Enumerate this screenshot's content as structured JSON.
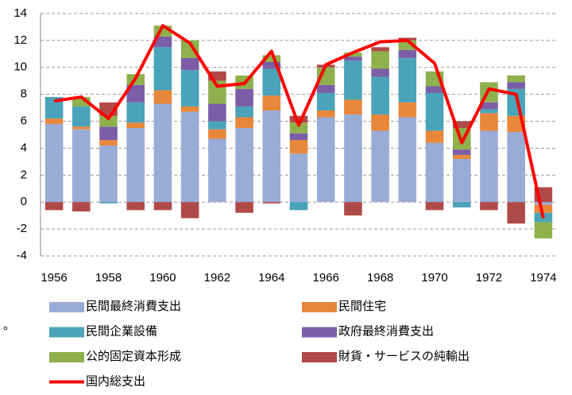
{
  "chart_data": {
    "type": "bar",
    "stacked": true,
    "categories": [
      "1956",
      null,
      "1958",
      null,
      "1960",
      null,
      "1962",
      null,
      "1964",
      null,
      "1966",
      null,
      "1968",
      null,
      "1970",
      null,
      "1972",
      null,
      "1974"
    ],
    "ylim": [
      -4,
      14
    ],
    "yticks": [
      -4,
      -2,
      0,
      2,
      4,
      6,
      8,
      10,
      12,
      14
    ],
    "grid": true,
    "annotation": "。",
    "series": [
      {
        "name": "民間最終消費支出",
        "color": "#98acd6",
        "values": [
          5.8,
          5.4,
          4.2,
          5.5,
          7.3,
          6.7,
          4.7,
          5.5,
          6.8,
          3.6,
          6.3,
          6.5,
          5.3,
          6.3,
          4.4,
          3.2,
          5.3,
          5.2,
          -0.2
        ]
      },
      {
        "name": "民間住宅",
        "color": "#e8873a",
        "values": [
          0.4,
          0.2,
          0.4,
          0.4,
          1.0,
          0.4,
          0.7,
          0.8,
          1.1,
          1.0,
          0.5,
          1.1,
          1.2,
          1.1,
          0.9,
          0.3,
          1.3,
          1.2,
          -0.6
        ]
      },
      {
        "name": "民間企業設備",
        "color": "#4aa3b8",
        "values": [
          1.6,
          1.5,
          -0.1,
          1.5,
          3.2,
          2.7,
          0.6,
          0.8,
          2.0,
          -0.6,
          1.3,
          2.9,
          2.8,
          3.3,
          2.8,
          -0.4,
          0.3,
          2.0,
          -0.7
        ]
      },
      {
        "name": "政府最終消費支出",
        "color": "#7b5ea7",
        "values": [
          0,
          0,
          1.0,
          1.3,
          0.8,
          0.9,
          1.3,
          1.3,
          0.5,
          0.5,
          0.6,
          0.3,
          0.6,
          0.6,
          0.5,
          0.4,
          0.5,
          0.5,
          0
        ]
      },
      {
        "name": "公的固定資本形成",
        "color": "#8eb14e",
        "values": [
          0,
          0.7,
          0.8,
          0.8,
          0.8,
          1.3,
          1.7,
          1.0,
          0.5,
          0.8,
          1.3,
          0.3,
          1.3,
          0.7,
          1.1,
          1.6,
          1.5,
          0.5,
          -1.2
        ]
      },
      {
        "name": "財貨・サービスの純輸出",
        "color": "#b04a4a",
        "values": [
          -0.6,
          -0.7,
          1.0,
          -0.6,
          -0.6,
          -1.2,
          0.7,
          -0.8,
          -0.1,
          0.5,
          0.2,
          -1.0,
          0.3,
          0.2,
          -0.6,
          0.5,
          -0.6,
          -1.6,
          1.1
        ]
      },
      {
        "name": "国内総支出",
        "color": "#ff0000",
        "type": "line",
        "values": [
          7.5,
          7.8,
          6.2,
          9.2,
          13.1,
          11.8,
          8.6,
          8.8,
          11.2,
          5.7,
          10.2,
          11.1,
          11.9,
          12.0,
          10.3,
          4.4,
          8.4,
          8.0,
          -1.2
        ]
      }
    ]
  }
}
